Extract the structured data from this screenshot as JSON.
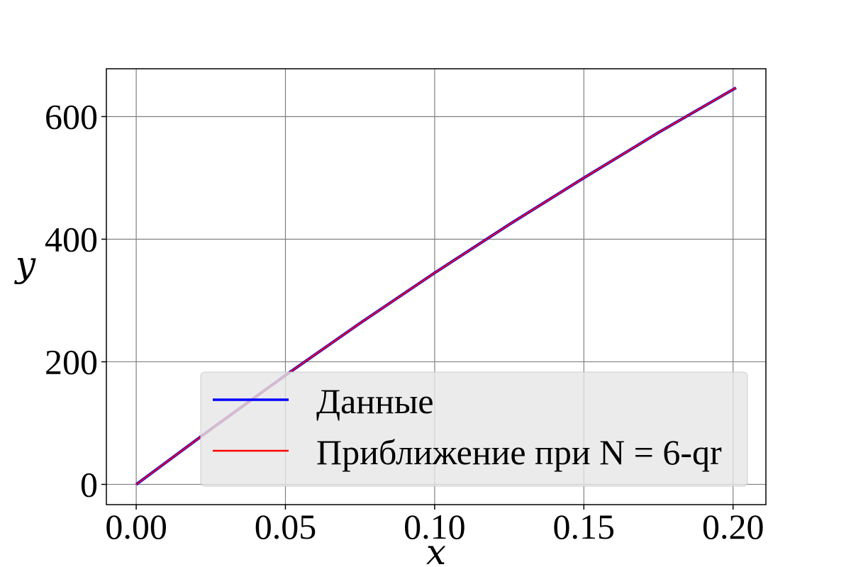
{
  "chart_data": {
    "type": "line",
    "title": "",
    "xlabel": "x",
    "ylabel": "y",
    "xlim": [
      -0.01,
      0.211
    ],
    "ylim": [
      -33,
      678
    ],
    "x_ticks": [
      0.0,
      0.05,
      0.1,
      0.15,
      0.2
    ],
    "x_tick_labels": [
      "0.00",
      "0.05",
      "0.10",
      "0.15",
      "0.20"
    ],
    "y_ticks": [
      0,
      200,
      400,
      600
    ],
    "y_tick_labels": [
      "0",
      "200",
      "400",
      "600"
    ],
    "grid": true,
    "legend_position": "lower-right",
    "x": [
      0.0,
      0.025,
      0.05,
      0.075,
      0.1,
      0.125,
      0.15,
      0.175,
      0.201
    ],
    "series": [
      {
        "name": "Данные",
        "color": "#0000ff",
        "values": [
          0,
          90,
          178,
          263,
          345,
          424,
          500,
          574,
          647
        ]
      },
      {
        "name": "Приближение при N = 6-qr",
        "color": "#ff0000",
        "values": [
          0,
          90,
          178,
          263,
          345,
          424,
          500,
          574,
          647
        ]
      }
    ]
  }
}
